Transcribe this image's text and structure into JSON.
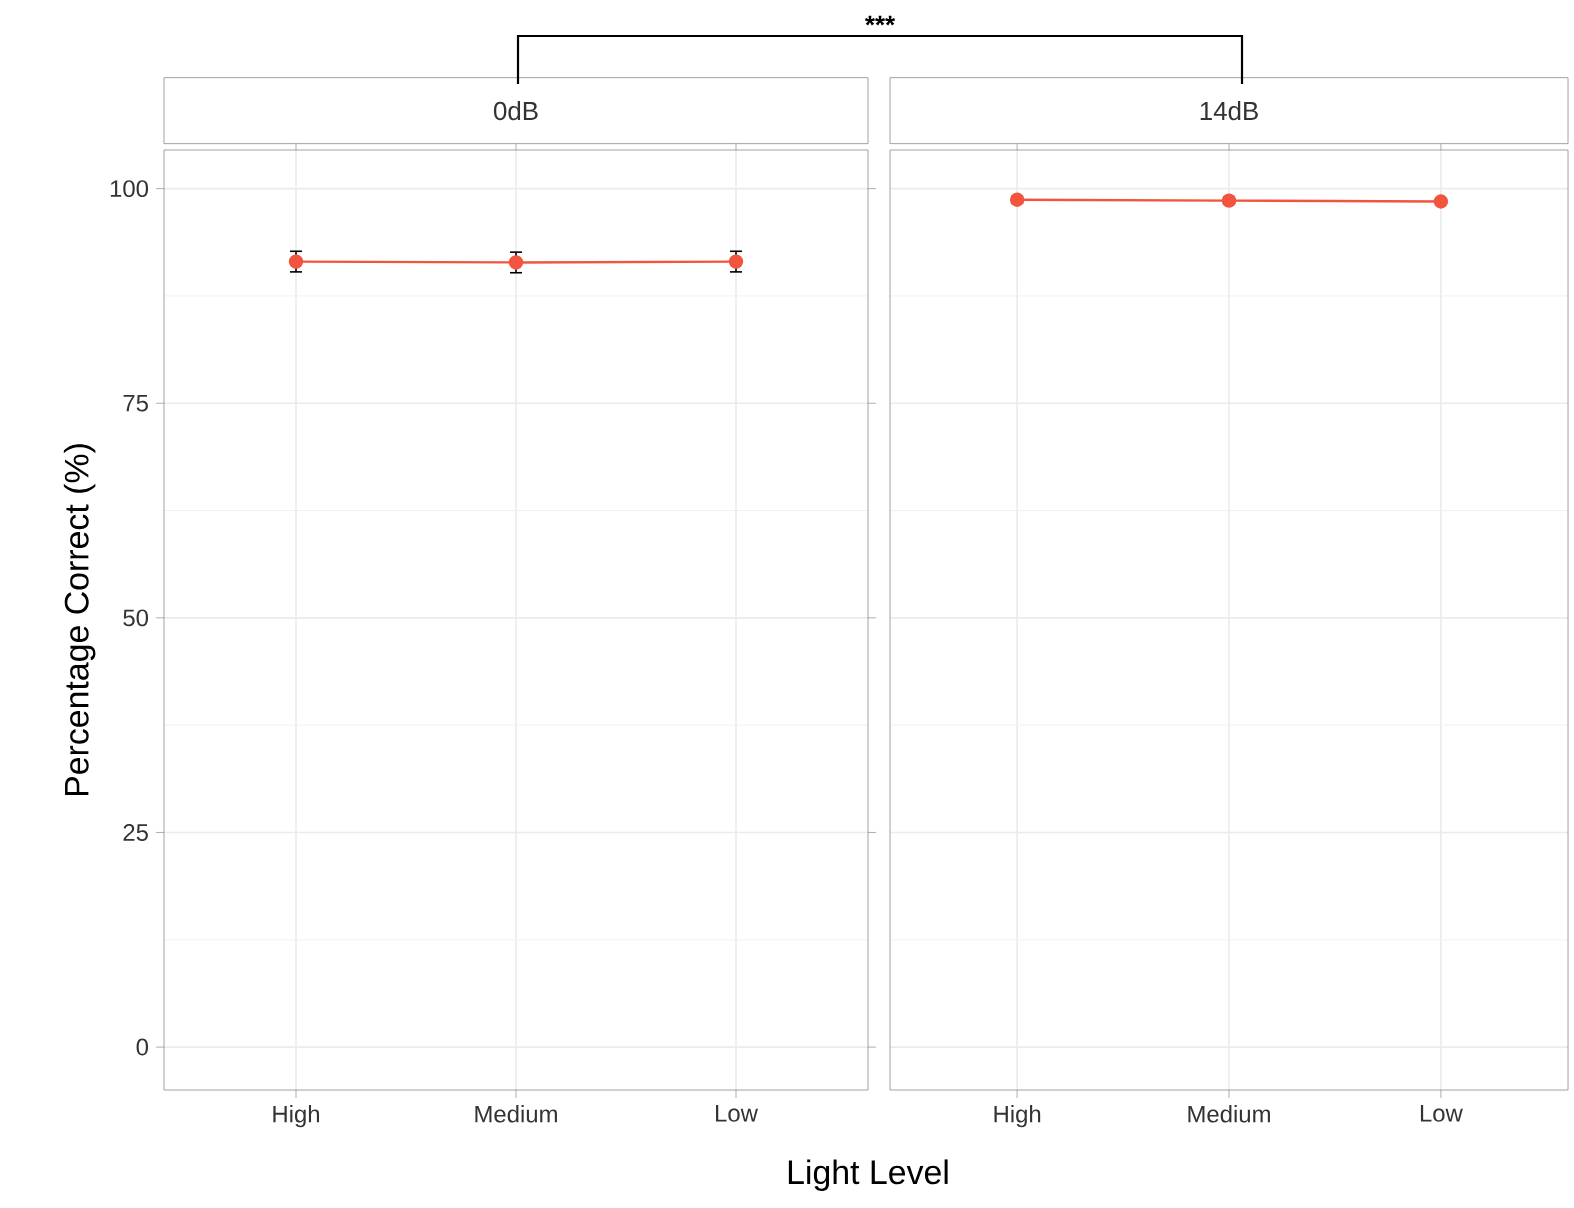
{
  "chart_data": [
    {
      "type": "line",
      "title": "0dB",
      "ylabel": "Percentage Correct (%)",
      "xlabel": "Light Level",
      "categories": [
        "High",
        "Medium",
        "Low"
      ],
      "series": [
        {
          "color": "#f2553f",
          "values": [
            91.5,
            91.4,
            91.5
          ],
          "errors": [
            1.2,
            1.2,
            1.2
          ]
        }
      ],
      "ylim": [
        -5,
        104.5
      ],
      "yticks": [
        0,
        25,
        50,
        75,
        100
      ],
      "grid": true,
      "marker": "circle",
      "line_style": "solid",
      "annotations": [
        "***"
      ]
    },
    {
      "type": "line",
      "title": "14dB",
      "categories": [
        "High",
        "Medium",
        "Low"
      ],
      "series": [
        {
          "color": "#f2553f",
          "values": [
            98.7,
            98.6,
            98.5
          ],
          "errors": [
            0.4,
            0.4,
            0.3
          ]
        }
      ],
      "ylim": [
        -5,
        104.5
      ],
      "yticks": [
        0,
        25,
        50,
        75,
        100
      ],
      "grid": true,
      "marker": "circle",
      "line_style": "solid",
      "tick_labels": "x"
    }
  ]
}
